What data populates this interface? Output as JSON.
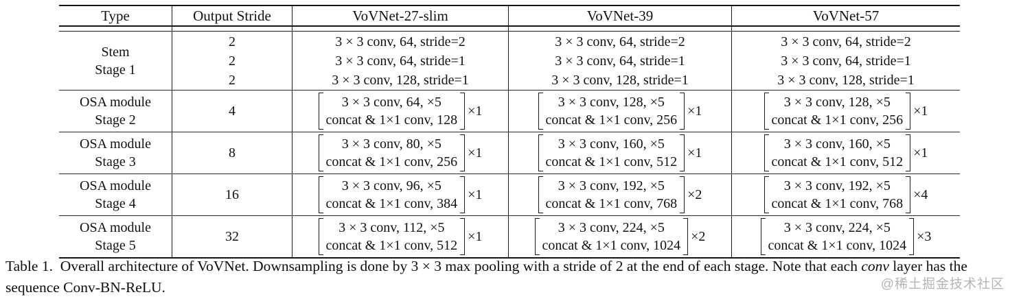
{
  "table": {
    "headers": [
      "Type",
      "Output Stride",
      "VoVNet-27-slim",
      "VoVNet-39",
      "VoVNet-57"
    ],
    "stem": {
      "type_lines": [
        "Stem",
        "Stage 1"
      ],
      "strides": [
        "2",
        "2",
        "2"
      ],
      "models": [
        [
          "3 × 3 conv, 64, stride=2",
          "3 × 3 conv, 64, stride=1",
          "3 × 3 conv, 128, stride=1"
        ],
        [
          "3 × 3 conv, 64, stride=2",
          "3 × 3 conv, 64, stride=1",
          "3 × 3 conv, 128, stride=1"
        ],
        [
          "3 × 3 conv, 64, stride=2",
          "3 × 3 conv, 64, stride=1",
          "3 × 3 conv, 128, stride=1"
        ]
      ]
    },
    "stages": [
      {
        "type_lines": [
          "OSA module",
          "Stage 2"
        ],
        "stride": "4",
        "models": [
          {
            "conv": "3 × 3 conv, 64, ×5",
            "concat": "concat & 1×1 conv, 128",
            "mult": "×1"
          },
          {
            "conv": "3 × 3 conv, 128, ×5",
            "concat": "concat & 1×1 conv, 256",
            "mult": "×1"
          },
          {
            "conv": "3 × 3 conv, 128, ×5",
            "concat": "concat & 1×1 conv, 256",
            "mult": "×1"
          }
        ]
      },
      {
        "type_lines": [
          "OSA module",
          "Stage 3"
        ],
        "stride": "8",
        "models": [
          {
            "conv": "3 × 3 conv, 80, ×5",
            "concat": "concat & 1×1 conv, 256",
            "mult": "×1"
          },
          {
            "conv": "3 × 3 conv, 160, ×5",
            "concat": "concat & 1×1 conv, 512",
            "mult": "×1"
          },
          {
            "conv": "3 × 3 conv, 160, ×5",
            "concat": "concat & 1×1 conv, 512",
            "mult": "×1"
          }
        ]
      },
      {
        "type_lines": [
          "OSA module",
          "Stage 4"
        ],
        "stride": "16",
        "models": [
          {
            "conv": "3 × 3 conv, 96, ×5",
            "concat": "concat & 1×1 conv, 384",
            "mult": "×1"
          },
          {
            "conv": "3 × 3 conv, 192, ×5",
            "concat": "concat & 1×1 conv, 768",
            "mult": "×2"
          },
          {
            "conv": "3 × 3 conv, 192, ×5",
            "concat": "concat & 1×1 conv, 768",
            "mult": "×4"
          }
        ]
      },
      {
        "type_lines": [
          "OSA module",
          "Stage 5"
        ],
        "stride": "32",
        "models": [
          {
            "conv": "3 × 3 conv, 112, ×5",
            "concat": "concat & 1×1 conv, 512",
            "mult": "×1"
          },
          {
            "conv": "3 × 3 conv, 224, ×5",
            "concat": "concat & 1×1 conv, 1024",
            "mult": "×2"
          },
          {
            "conv": "3 × 3 conv, 224, ×5",
            "concat": "concat & 1×1 conv, 1024",
            "mult": "×3"
          }
        ]
      }
    ]
  },
  "caption": {
    "part1": "Table 1.  Overall architecture of VoVNet. Downsampling is done by 3 × 3 max pooling with a stride of 2 at the end of each stage. Note that each ",
    "italic": "conv",
    "part2": " layer has the sequence Conv-BN-ReLU."
  },
  "watermark": "@稀土掘金技术社区"
}
